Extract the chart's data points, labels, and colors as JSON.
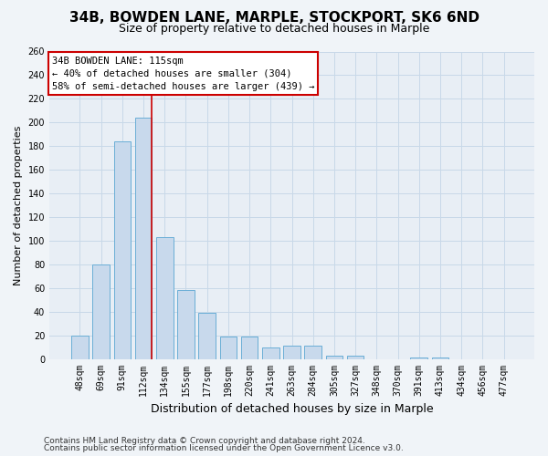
{
  "title1": "34B, BOWDEN LANE, MARPLE, STOCKPORT, SK6 6ND",
  "title2": "Size of property relative to detached houses in Marple",
  "xlabel": "Distribution of detached houses by size in Marple",
  "ylabel": "Number of detached properties",
  "categories": [
    "48sqm",
    "69sqm",
    "91sqm",
    "112sqm",
    "134sqm",
    "155sqm",
    "177sqm",
    "198sqm",
    "220sqm",
    "241sqm",
    "263sqm",
    "284sqm",
    "305sqm",
    "327sqm",
    "348sqm",
    "370sqm",
    "391sqm",
    "413sqm",
    "434sqm",
    "456sqm",
    "477sqm"
  ],
  "values": [
    20,
    80,
    184,
    204,
    103,
    58,
    39,
    19,
    19,
    10,
    11,
    11,
    3,
    3,
    0,
    0,
    1,
    1,
    0,
    0,
    0
  ],
  "bar_color": "#c8d9ec",
  "bar_edge_color": "#6aaed6",
  "vline_color": "#cc0000",
  "annotation_text": "34B BOWDEN LANE: 115sqm\n← 40% of detached houses are smaller (304)\n58% of semi-detached houses are larger (439) →",
  "annotation_box_color": "#ffffff",
  "annotation_box_edge": "#cc0000",
  "ylim": [
    0,
    260
  ],
  "yticks": [
    0,
    20,
    40,
    60,
    80,
    100,
    120,
    140,
    160,
    180,
    200,
    220,
    240,
    260
  ],
  "grid_color": "#c8d8e8",
  "background_color": "#e8eef5",
  "fig_background_color": "#f0f4f8",
  "footer1": "Contains HM Land Registry data © Crown copyright and database right 2024.",
  "footer2": "Contains public sector information licensed under the Open Government Licence v3.0.",
  "title1_fontsize": 11,
  "title2_fontsize": 9,
  "xlabel_fontsize": 9,
  "ylabel_fontsize": 8,
  "tick_fontsize": 7,
  "annotation_fontsize": 7.5,
  "footer_fontsize": 6.5
}
